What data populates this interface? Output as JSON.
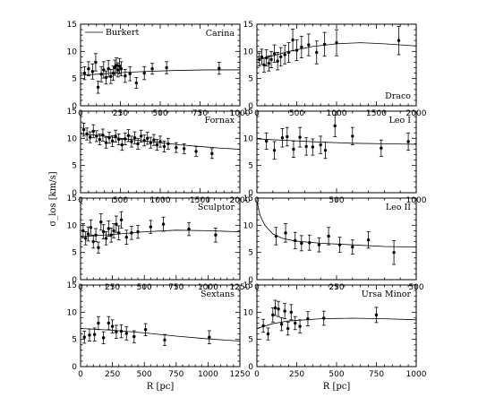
{
  "chart_data": {
    "type": "scatter",
    "x_label": "R [pc]",
    "y_label": "σ_los [km/s]",
    "legend": {
      "entry": "Burkert",
      "placement": "top-left",
      "panel": "Carina"
    },
    "panels": [
      {
        "name": "Carina",
        "label_pos": "top-right",
        "xlim": [
          0,
          1000
        ],
        "ylim": [
          0,
          15
        ],
        "xticks": [
          0,
          250,
          500,
          750,
          1000
        ],
        "yticks": [
          0,
          5,
          10,
          15
        ],
        "model": [
          [
            0,
            5.6
          ],
          [
            100,
            5.8
          ],
          [
            200,
            6.0
          ],
          [
            400,
            6.3
          ],
          [
            600,
            6.5
          ],
          [
            800,
            6.6
          ],
          [
            1000,
            6.6
          ]
        ],
        "points": [
          [
            25,
            6.0,
            1.2
          ],
          [
            50,
            6.8,
            1.3
          ],
          [
            75,
            6.3,
            1.4
          ],
          [
            95,
            8.0,
            1.6
          ],
          [
            110,
            3.4,
            1.1
          ],
          [
            130,
            5.8,
            1.4
          ],
          [
            145,
            6.6,
            1.5
          ],
          [
            160,
            5.2,
            1.2
          ],
          [
            175,
            6.8,
            1.5
          ],
          [
            190,
            5.4,
            1.3
          ],
          [
            205,
            6.0,
            1.3
          ],
          [
            215,
            7.0,
            1.4
          ],
          [
            225,
            7.4,
            1.4
          ],
          [
            235,
            6.6,
            1.3
          ],
          [
            245,
            7.3,
            1.4
          ],
          [
            255,
            6.8,
            1.3
          ],
          [
            280,
            5.5,
            1.2
          ],
          [
            310,
            5.9,
            1.3
          ],
          [
            350,
            4.2,
            1.0
          ],
          [
            400,
            6.0,
            1.2
          ],
          [
            450,
            6.8,
            1.0
          ],
          [
            540,
            7.0,
            1.1
          ],
          [
            870,
            6.9,
            1.1
          ]
        ]
      },
      {
        "name": "Draco",
        "label_pos": "bottom-right",
        "xlim": [
          0,
          2000
        ],
        "ylim": [
          0,
          15
        ],
        "xticks": [
          0,
          500,
          1000,
          1500,
          2000
        ],
        "yticks": [
          0,
          5,
          10,
          15
        ],
        "model": [
          [
            0,
            8.4
          ],
          [
            200,
            9.2
          ],
          [
            400,
            10.0
          ],
          [
            700,
            10.9
          ],
          [
            1000,
            11.4
          ],
          [
            1300,
            11.6
          ],
          [
            1600,
            11.4
          ],
          [
            2000,
            11.0
          ]
        ],
        "points": [
          [
            30,
            8.5,
            1.2
          ],
          [
            60,
            9.0,
            1.4
          ],
          [
            90,
            7.5,
            1.3
          ],
          [
            120,
            8.8,
            1.5
          ],
          [
            150,
            7.8,
            1.4
          ],
          [
            180,
            8.5,
            1.5
          ],
          [
            220,
            9.6,
            1.6
          ],
          [
            260,
            8.2,
            1.6
          ],
          [
            300,
            9.0,
            1.7
          ],
          [
            350,
            9.4,
            1.7
          ],
          [
            400,
            9.8,
            1.8
          ],
          [
            450,
            12.1,
            2.0
          ],
          [
            500,
            10.2,
            1.9
          ],
          [
            560,
            10.8,
            2.0
          ],
          [
            650,
            11.2,
            2.0
          ],
          [
            750,
            9.8,
            2.1
          ],
          [
            850,
            11.3,
            2.2
          ],
          [
            1000,
            11.6,
            2.4
          ],
          [
            1780,
            12.0,
            2.6
          ]
        ]
      },
      {
        "name": "Fornax",
        "label_pos": "top-right",
        "xlim": [
          0,
          2000
        ],
        "ylim": [
          0,
          15
        ],
        "xticks": [
          0,
          500,
          1000,
          1500,
          2000
        ],
        "yticks": [
          0,
          5,
          10,
          15
        ],
        "model": [
          [
            0,
            10.8
          ],
          [
            250,
            10.5
          ],
          [
            500,
            10.0
          ],
          [
            750,
            9.6
          ],
          [
            1000,
            9.2
          ],
          [
            1250,
            8.8
          ],
          [
            1500,
            8.5
          ],
          [
            1750,
            8.2
          ],
          [
            2000,
            8.0
          ]
        ],
        "points": [
          [
            40,
            11.6,
            1.2
          ],
          [
            80,
            10.8,
            1.1
          ],
          [
            120,
            10.2,
            1.0
          ],
          [
            160,
            11.3,
            1.2
          ],
          [
            200,
            10.4,
            1.0
          ],
          [
            240,
            9.8,
            1.0
          ],
          [
            280,
            10.6,
            1.1
          ],
          [
            320,
            9.2,
            1.0
          ],
          [
            360,
            10.1,
            1.0
          ],
          [
            400,
            9.5,
            1.0
          ],
          [
            440,
            10.4,
            1.1
          ],
          [
            480,
            9.8,
            1.0
          ],
          [
            520,
            8.8,
            1.0
          ],
          [
            560,
            9.9,
            1.1
          ],
          [
            600,
            10.5,
            1.1
          ],
          [
            640,
            9.4,
            1.0
          ],
          [
            680,
            10.1,
            1.1
          ],
          [
            720,
            9.0,
            1.0
          ],
          [
            760,
            10.4,
            1.1
          ],
          [
            800,
            9.6,
            1.0
          ],
          [
            840,
            10.0,
            1.1
          ],
          [
            880,
            9.2,
            1.0
          ],
          [
            920,
            9.7,
            1.0
          ],
          [
            960,
            8.8,
            1.0
          ],
          [
            1000,
            9.4,
            1.0
          ],
          [
            1050,
            8.5,
            1.0
          ],
          [
            1100,
            9.0,
            1.0
          ],
          [
            1200,
            8.3,
            0.9
          ],
          [
            1300,
            8.1,
            0.9
          ],
          [
            1450,
            7.6,
            0.9
          ],
          [
            1650,
            7.2,
            0.9
          ]
        ]
      },
      {
        "name": "Leo I",
        "label_pos": "top-right",
        "xlim": [
          0,
          1000
        ],
        "ylim": [
          0,
          15
        ],
        "xticks": [
          0,
          500,
          1000
        ],
        "yticks": [
          0,
          5,
          10,
          15
        ],
        "model": [
          [
            0,
            9.9
          ],
          [
            200,
            9.6
          ],
          [
            400,
            9.3
          ],
          [
            600,
            9.1
          ],
          [
            800,
            9.0
          ],
          [
            1000,
            8.9
          ]
        ],
        "points": [
          [
            60,
            9.5,
            1.5
          ],
          [
            110,
            7.8,
            1.6
          ],
          [
            160,
            10.1,
            1.7
          ],
          [
            190,
            10.3,
            1.7
          ],
          [
            230,
            8.0,
            1.5
          ],
          [
            270,
            10.2,
            1.8
          ],
          [
            310,
            8.5,
            1.6
          ],
          [
            350,
            8.4,
            1.5
          ],
          [
            400,
            8.8,
            1.6
          ],
          [
            430,
            7.8,
            1.5
          ],
          [
            490,
            12.3,
            2.0
          ],
          [
            600,
            10.4,
            1.6
          ],
          [
            780,
            8.2,
            1.5
          ],
          [
            950,
            9.4,
            1.6
          ]
        ]
      },
      {
        "name": "Sculptor",
        "label_pos": "top-right",
        "xlim": [
          0,
          1250
        ],
        "ylim": [
          0,
          15
        ],
        "xticks": [
          0,
          250,
          500,
          750,
          1000,
          1250
        ],
        "yticks": [
          0,
          5,
          10,
          15
        ],
        "model": [
          [
            0,
            7.9
          ],
          [
            250,
            8.3
          ],
          [
            500,
            8.8
          ],
          [
            750,
            9.1
          ],
          [
            1000,
            9.0
          ],
          [
            1250,
            8.8
          ]
        ],
        "points": [
          [
            20,
            9.0,
            1.3
          ],
          [
            40,
            7.6,
            1.2
          ],
          [
            60,
            8.4,
            1.3
          ],
          [
            80,
            9.6,
            1.4
          ],
          [
            100,
            7.0,
            1.2
          ],
          [
            120,
            8.2,
            1.2
          ],
          [
            140,
            5.9,
            1.0
          ],
          [
            160,
            10.6,
            1.5
          ],
          [
            180,
            8.8,
            1.3
          ],
          [
            200,
            7.6,
            1.2
          ],
          [
            220,
            9.4,
            1.4
          ],
          [
            240,
            8.2,
            1.3
          ],
          [
            260,
            9.0,
            1.3
          ],
          [
            280,
            10.2,
            1.5
          ],
          [
            300,
            8.6,
            1.3
          ],
          [
            320,
            11.0,
            1.5
          ],
          [
            360,
            7.8,
            1.3
          ],
          [
            400,
            8.6,
            1.2
          ],
          [
            450,
            8.8,
            1.2
          ],
          [
            550,
            9.7,
            1.2
          ],
          [
            650,
            10.2,
            1.3
          ],
          [
            850,
            9.3,
            1.2
          ],
          [
            1060,
            8.2,
            1.3
          ]
        ]
      },
      {
        "name": "Leo II",
        "label_pos": "top-right",
        "xlim": [
          0,
          500
        ],
        "ylim": [
          0,
          15
        ],
        "xticks": [
          0,
          250,
          500
        ],
        "yticks": [
          0,
          5,
          10,
          15
        ],
        "model": [
          [
            0,
            14.5
          ],
          [
            10,
            11.8
          ],
          [
            25,
            10.0
          ],
          [
            50,
            8.4
          ],
          [
            80,
            7.6
          ],
          [
            120,
            7.1
          ],
          [
            200,
            6.7
          ],
          [
            300,
            6.4
          ],
          [
            400,
            6.1
          ],
          [
            500,
            6.0
          ]
        ],
        "points": [
          [
            60,
            8.0,
            1.6
          ],
          [
            90,
            8.6,
            1.7
          ],
          [
            120,
            7.2,
            1.5
          ],
          [
            140,
            6.7,
            1.4
          ],
          [
            165,
            6.8,
            1.4
          ],
          [
            195,
            6.4,
            1.3
          ],
          [
            225,
            8.0,
            1.6
          ],
          [
            260,
            6.4,
            1.4
          ],
          [
            300,
            6.0,
            1.3
          ],
          [
            350,
            7.3,
            1.5
          ],
          [
            430,
            5.0,
            2.2
          ]
        ]
      },
      {
        "name": "Sextans",
        "label_pos": "top-right",
        "xlim": [
          0,
          1250
        ],
        "ylim": [
          0,
          15
        ],
        "xticks": [
          0,
          250,
          500,
          750,
          1000,
          1250
        ],
        "yticks": [
          0,
          5,
          10,
          15
        ],
        "model": [
          [
            0,
            7.0
          ],
          [
            250,
            6.7
          ],
          [
            500,
            6.2
          ],
          [
            750,
            5.6
          ],
          [
            1000,
            5.1
          ],
          [
            1250,
            4.7
          ]
        ],
        "points": [
          [
            30,
            5.4,
            1.1
          ],
          [
            70,
            5.8,
            1.1
          ],
          [
            110,
            5.9,
            1.2
          ],
          [
            140,
            8.0,
            1.2
          ],
          [
            180,
            5.3,
            1.1
          ],
          [
            220,
            8.0,
            1.2
          ],
          [
            250,
            7.4,
            1.2
          ],
          [
            280,
            6.4,
            1.2
          ],
          [
            320,
            6.5,
            1.2
          ],
          [
            360,
            6.1,
            1.2
          ],
          [
            420,
            5.5,
            1.1
          ],
          [
            510,
            6.8,
            1.1
          ],
          [
            660,
            4.9,
            1.0
          ],
          [
            1010,
            5.4,
            1.2
          ]
        ]
      },
      {
        "name": "Ursa Minor",
        "label_pos": "top-right",
        "xlim": [
          0,
          1000
        ],
        "ylim": [
          0,
          15
        ],
        "xticks": [
          0,
          250,
          500,
          750,
          1000
        ],
        "yticks": [
          0,
          5,
          10,
          15
        ],
        "model": [
          [
            0,
            7.0
          ],
          [
            100,
            7.9
          ],
          [
            200,
            8.4
          ],
          [
            400,
            8.8
          ],
          [
            600,
            8.9
          ],
          [
            800,
            8.8
          ],
          [
            1000,
            8.6
          ]
        ],
        "points": [
          [
            40,
            7.5,
            1.2
          ],
          [
            70,
            6.0,
            1.1
          ],
          [
            100,
            9.5,
            1.3
          ],
          [
            115,
            10.8,
            1.4
          ],
          [
            135,
            10.6,
            1.4
          ],
          [
            155,
            7.8,
            1.2
          ],
          [
            175,
            10.2,
            1.4
          ],
          [
            195,
            7.0,
            1.2
          ],
          [
            215,
            10.0,
            1.4
          ],
          [
            240,
            8.0,
            1.2
          ],
          [
            270,
            7.4,
            1.2
          ],
          [
            320,
            8.8,
            1.3
          ],
          [
            420,
            8.9,
            1.3
          ],
          [
            750,
            9.5,
            1.4
          ]
        ]
      }
    ]
  }
}
